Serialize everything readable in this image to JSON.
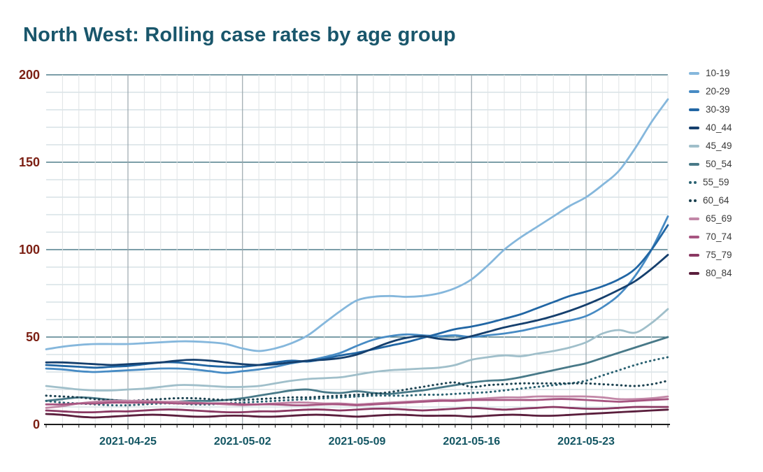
{
  "title": "North West: Rolling case rates by age group",
  "colors": {
    "background": "#ffffff",
    "title_text": "#19566b",
    "y_label_text": "#7c2014",
    "x_label_text": "#135663",
    "legend_text": "#3a3a3a",
    "grid_major_h": "#2f6373",
    "grid_minor_h": "#c3d3da",
    "grid_week_v": "#9aa6ac",
    "grid_day_v": "#dfe3e5",
    "axis_line": "#1c1c1c"
  },
  "chart_data": {
    "type": "line",
    "title": "North West: Rolling case rates by age group",
    "xlabel": "",
    "ylabel": "",
    "x_start_date": "2021-04-20",
    "n_points": 39,
    "x_tick_labels": [
      "2021-04-25",
      "2021-05-02",
      "2021-05-09",
      "2021-05-16",
      "2021-05-23"
    ],
    "x_tick_day_index": [
      5,
      12,
      19,
      26,
      33
    ],
    "ylim": [
      0,
      200
    ],
    "y_ticks": [
      0,
      50,
      100,
      150,
      200
    ],
    "y_minor_step": 10,
    "grid": "on",
    "legend_position": "right",
    "series": [
      {
        "name": "10-19",
        "color": "#85b7dc",
        "style": "solid",
        "values": [
          43,
          44.5,
          45.5,
          46,
          46,
          46,
          46.5,
          47,
          47.5,
          47.5,
          47,
          46,
          43.5,
          42,
          43.5,
          46.5,
          51,
          58,
          65,
          71,
          73,
          73.5,
          73,
          73.5,
          75,
          78,
          83,
          91,
          100,
          107,
          113,
          119,
          125,
          130,
          137,
          145,
          158,
          173,
          186
        ]
      },
      {
        "name": "20-29",
        "color": "#478bc4",
        "style": "solid",
        "values": [
          32,
          31.5,
          30.5,
          30,
          30.5,
          31,
          31.5,
          32,
          32,
          31.5,
          30.5,
          29.5,
          30.5,
          31.5,
          33,
          35,
          36.5,
          38.5,
          41,
          45,
          48.5,
          50.5,
          51.5,
          51,
          50.5,
          51,
          50,
          51,
          52,
          53.5,
          55.5,
          57.5,
          59.5,
          62,
          67,
          74,
          85,
          100,
          119
        ]
      },
      {
        "name": "30-39",
        "color": "#2166a4",
        "style": "solid",
        "values": [
          34,
          33.5,
          33,
          32.5,
          33,
          33.5,
          34.5,
          35.5,
          35.5,
          34.5,
          33.5,
          33,
          33,
          34,
          35.5,
          36.5,
          36,
          37.5,
          39.5,
          41,
          43,
          45,
          47,
          49.5,
          52,
          54.5,
          56,
          58,
          60.5,
          63,
          66.5,
          70,
          73.5,
          76,
          79,
          83,
          89,
          100,
          114
        ]
      },
      {
        "name": "40_44",
        "color": "#153f6d",
        "style": "solid",
        "values": [
          35.5,
          35.5,
          35,
          34.5,
          34,
          34.5,
          35,
          35.5,
          36.5,
          37,
          36.5,
          35.5,
          34.5,
          34,
          34.5,
          35.5,
          36.5,
          37,
          38,
          40,
          43.5,
          47,
          49.5,
          50.5,
          49,
          48.5,
          50.5,
          53,
          55.5,
          57.5,
          59.5,
          62,
          65,
          68.5,
          72.5,
          77,
          82,
          89,
          97
        ]
      },
      {
        "name": "45_49",
        "color": "#a0bfca",
        "style": "solid",
        "values": [
          22,
          21,
          20,
          19.5,
          19.5,
          20,
          20.5,
          21.5,
          22.5,
          22.5,
          22,
          21.5,
          21.5,
          22,
          23.5,
          25,
          26,
          26.5,
          27,
          28.5,
          30,
          31,
          31.5,
          32,
          32.5,
          34,
          37,
          38.5,
          39.5,
          39,
          40.5,
          42,
          44,
          47,
          52,
          54,
          52.5,
          58,
          66
        ]
      },
      {
        "name": "50_54",
        "color": "#487988",
        "style": "solid",
        "values": [
          13.5,
          14.5,
          15.5,
          15,
          14,
          13.5,
          13,
          12.5,
          13,
          13.5,
          13.5,
          14,
          15,
          16.5,
          18,
          19.5,
          20,
          18.5,
          18,
          19,
          18,
          17.5,
          18.5,
          19.5,
          21,
          22.5,
          24,
          25,
          25.5,
          27,
          29,
          31,
          33,
          35,
          38,
          41,
          44,
          47,
          50
        ]
      },
      {
        "name": "55_59",
        "color": "#2b6272",
        "style": "dotted",
        "values": [
          13.5,
          12.5,
          12,
          11.5,
          11,
          11,
          11.5,
          12,
          12,
          11.5,
          11.5,
          12,
          12.5,
          13,
          13.5,
          14,
          14.5,
          15,
          15.5,
          16,
          16.5,
          16.5,
          16.5,
          17,
          17,
          17.5,
          18,
          18.5,
          19.5,
          20.5,
          21.5,
          22.5,
          23.5,
          25,
          28,
          31,
          34,
          36.5,
          38.5
        ]
      },
      {
        "name": "60_64",
        "color": "#1b4150",
        "style": "dotted",
        "values": [
          16.5,
          16,
          15.5,
          14.5,
          14,
          13.5,
          14,
          14.5,
          15,
          15,
          14.5,
          14,
          14,
          14.5,
          15,
          15.5,
          15.5,
          16,
          16.5,
          17,
          17.5,
          18.5,
          20,
          21.5,
          23,
          24,
          21.5,
          22.5,
          23,
          23.5,
          23.5,
          23.5,
          23.5,
          23.5,
          23,
          22.5,
          22,
          23,
          25
        ]
      },
      {
        "name": "65_69",
        "color": "#c287a7",
        "style": "solid",
        "values": [
          9.5,
          10.5,
          12,
          13,
          13.5,
          13.5,
          13.5,
          13,
          13,
          12.5,
          12,
          11.5,
          11,
          11.5,
          12,
          12.5,
          12.5,
          12,
          12,
          11.5,
          12,
          12.5,
          13,
          13.5,
          14,
          14,
          14.5,
          15,
          15.5,
          15.5,
          16,
          16,
          16,
          16,
          15.5,
          14.5,
          14.5,
          15,
          16
        ]
      },
      {
        "name": "70_74",
        "color": "#a75581",
        "style": "solid",
        "values": [
          11.5,
          11.5,
          12,
          12,
          12.5,
          12.5,
          12.5,
          12.5,
          12,
          12,
          12,
          12,
          11.5,
          11.5,
          11.5,
          11,
          11,
          11.5,
          11.5,
          11,
          11.5,
          12,
          12.5,
          13,
          13.5,
          13.5,
          14,
          14,
          14,
          14,
          14,
          14.5,
          14.5,
          14,
          13.5,
          13,
          13.5,
          14,
          14.5
        ]
      },
      {
        "name": "75_79",
        "color": "#8a3862",
        "style": "solid",
        "values": [
          8,
          7.5,
          7,
          7,
          7.5,
          7.5,
          8,
          8.5,
          8.5,
          8,
          7.5,
          7,
          7,
          7.5,
          7.5,
          8,
          8.5,
          8.5,
          8,
          8.5,
          9,
          9,
          8.5,
          8,
          8.5,
          9,
          9.5,
          9,
          8.5,
          9,
          9.5,
          10,
          9.5,
          9,
          9,
          9.5,
          10,
          10,
          10
        ]
      },
      {
        "name": "80_84",
        "color": "#5a1e3c",
        "style": "solid",
        "values": [
          6,
          5.5,
          4.5,
          4,
          4.5,
          5,
          5.5,
          5.5,
          5,
          4.5,
          4.5,
          5,
          5,
          4.5,
          4.5,
          5,
          5.5,
          5.5,
          5,
          4.5,
          5,
          5.5,
          5.5,
          5,
          5,
          5,
          4.5,
          5,
          5.5,
          5.5,
          5,
          5,
          5.5,
          6,
          6.5,
          7,
          7.5,
          8,
          8.5
        ]
      }
    ]
  }
}
